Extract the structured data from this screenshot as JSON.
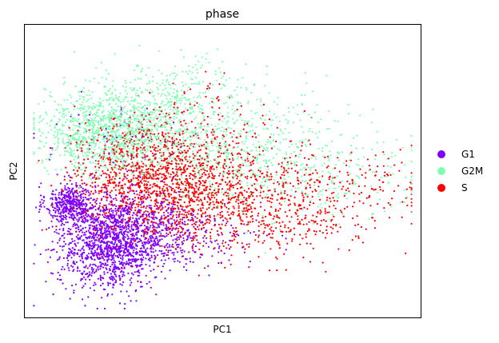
{
  "chart_data": {
    "type": "scatter",
    "title": "phase",
    "xlabel": "PC1",
    "ylabel": "PC2",
    "xlim": [
      -3.0,
      10.0
    ],
    "ylim": [
      -5.0,
      5.0
    ],
    "grid": false,
    "ticks": "none",
    "legend_position": "right",
    "series": [
      {
        "name": "G1",
        "color": "#7f00ff",
        "clusters": [
          {
            "cx": -1.5,
            "cy": -1.1,
            "sx": 0.4,
            "sy": 0.35,
            "n": 420
          },
          {
            "cx": -0.2,
            "cy": -2.5,
            "sx": 0.85,
            "sy": 0.75,
            "n": 1250
          },
          {
            "cx": 0.9,
            "cy": -2.0,
            "sx": 1.0,
            "sy": 0.7,
            "n": 450
          },
          {
            "cx": 3.0,
            "cy": -2.4,
            "sx": 1.1,
            "sy": 0.45,
            "n": 90
          },
          {
            "cx": 0.2,
            "cy": 1.2,
            "sx": 1.4,
            "sy": 0.7,
            "n": 60
          }
        ]
      },
      {
        "name": "G2M",
        "color": "#80ffb4",
        "clusters": [
          {
            "cx": -0.4,
            "cy": 1.4,
            "sx": 1.0,
            "sy": 0.7,
            "n": 1000
          },
          {
            "cx": 1.8,
            "cy": 1.8,
            "sx": 1.4,
            "sy": 0.9,
            "n": 550
          },
          {
            "cx": 4.2,
            "cy": 0.6,
            "sx": 1.8,
            "sy": 1.0,
            "n": 500
          },
          {
            "cx": 7.2,
            "cy": 0.1,
            "sx": 1.5,
            "sy": 0.8,
            "n": 150
          },
          {
            "cx": 2.8,
            "cy": 3.1,
            "sx": 1.4,
            "sy": 0.4,
            "n": 40
          },
          {
            "cx": 6.6,
            "cy": 2.1,
            "sx": 0.8,
            "sy": 0.3,
            "n": 10
          }
        ]
      },
      {
        "name": "S",
        "color": "#ff0000",
        "clusters": [
          {
            "cx": 0.9,
            "cy": -0.3,
            "sx": 1.2,
            "sy": 1.0,
            "n": 850
          },
          {
            "cx": 2.6,
            "cy": -0.9,
            "sx": 1.5,
            "sy": 0.9,
            "n": 700
          },
          {
            "cx": 5.2,
            "cy": -1.1,
            "sx": 1.7,
            "sy": 0.9,
            "n": 450
          },
          {
            "cx": 8.0,
            "cy": -0.8,
            "sx": 1.2,
            "sy": 0.8,
            "n": 110
          },
          {
            "cx": 2.0,
            "cy": 1.0,
            "sx": 1.6,
            "sy": 0.7,
            "n": 200
          },
          {
            "cx": 2.8,
            "cy": 2.6,
            "sx": 0.8,
            "sy": 0.5,
            "n": 25
          }
        ]
      }
    ]
  }
}
